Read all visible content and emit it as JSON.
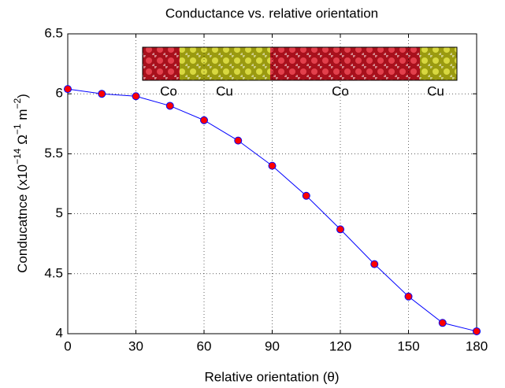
{
  "chart_data": {
    "type": "line",
    "title": "Conductance vs. relative orientation",
    "xlabel": "Relative orientation (θ)",
    "ylabel": [
      {
        "text": "Conducatnce (x10"
      },
      {
        "sup": "−14"
      },
      {
        "text": " Ω"
      },
      {
        "sup": "−1"
      },
      {
        "text": " m"
      },
      {
        "sup": "−2"
      },
      {
        "text": ")"
      }
    ],
    "x": [
      0,
      15,
      30,
      45,
      60,
      75,
      90,
      105,
      120,
      135,
      150,
      165,
      180
    ],
    "series": [
      {
        "color": "#0000ff",
        "marker_color": "#ff0000",
        "values": [
          6.04,
          6.0,
          5.98,
          5.9,
          5.78,
          5.61,
          5.4,
          5.15,
          4.87,
          4.58,
          4.31,
          4.09,
          4.02
        ]
      }
    ],
    "xlim": [
      0,
      180
    ],
    "xticks": [
      0,
      30,
      60,
      90,
      120,
      150,
      180
    ],
    "ylim": [
      4,
      6.5
    ],
    "yticks": [
      4,
      4.5,
      5,
      5.5,
      6,
      6.5
    ],
    "grid": true,
    "annotations": [
      "Co",
      "Cu",
      "Co",
      "Cu"
    ]
  }
}
